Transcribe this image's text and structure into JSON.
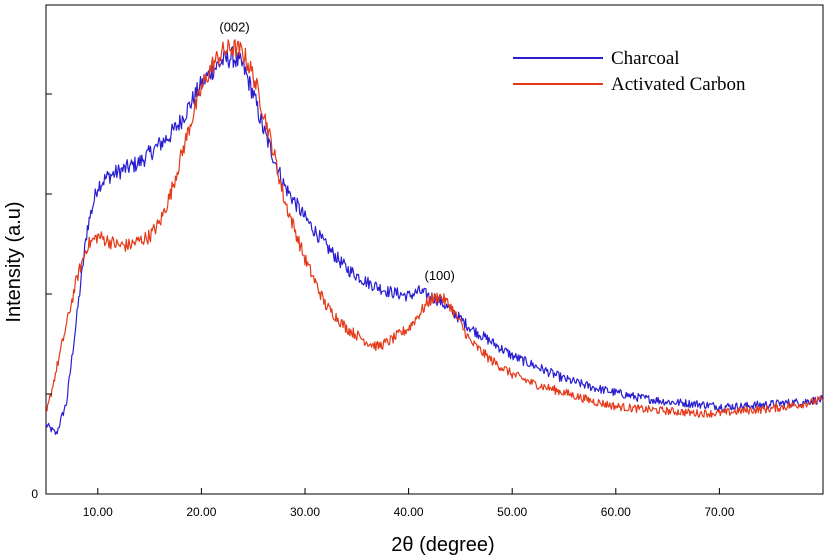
{
  "chart_data": {
    "type": "line",
    "title": "",
    "xlabel": "2θ (degree)",
    "ylabel": "Intensity (a.u)",
    "xlim": [
      5,
      80
    ],
    "ylim": [
      0,
      1
    ],
    "x_ticks": [
      10,
      20,
      30,
      40,
      50,
      60,
      70
    ],
    "x_tick_labels": [
      "10.00",
      "20.00",
      "30.00",
      "40.00",
      "50.00",
      "60.00",
      "70.00"
    ],
    "y_tick_labels": [
      "0"
    ],
    "legend_position": "top-right",
    "annotations": [
      {
        "text": "(002)",
        "x": 23.2,
        "y": 0.975
      },
      {
        "text": "(100)",
        "x": 43.0,
        "y": 0.435
      }
    ],
    "series": [
      {
        "name": "Charcoal",
        "color": "#2a1fd0",
        "x": [
          5,
          6,
          7,
          8,
          9,
          10,
          11,
          12,
          13,
          14,
          15,
          16,
          17,
          18,
          19,
          20,
          21,
          22,
          23,
          24,
          25,
          26,
          27,
          28,
          30,
          32,
          34,
          36,
          38,
          40,
          41,
          42,
          43,
          44,
          45,
          46,
          48,
          50,
          52,
          55,
          58,
          60,
          62,
          65,
          68,
          70,
          72,
          75,
          78,
          80
        ],
        "y": [
          0.12,
          0.1,
          0.17,
          0.36,
          0.55,
          0.64,
          0.66,
          0.67,
          0.68,
          0.69,
          0.71,
          0.73,
          0.75,
          0.78,
          0.82,
          0.86,
          0.89,
          0.91,
          0.92,
          0.9,
          0.84,
          0.76,
          0.7,
          0.64,
          0.57,
          0.51,
          0.46,
          0.43,
          0.41,
          0.4,
          0.41,
          0.4,
          0.39,
          0.37,
          0.35,
          0.33,
          0.3,
          0.27,
          0.25,
          0.22,
          0.2,
          0.19,
          0.18,
          0.17,
          0.165,
          0.16,
          0.16,
          0.165,
          0.17,
          0.175
        ]
      },
      {
        "name": "Activated Carbon",
        "color": "#e53a1a",
        "x": [
          5,
          6,
          7,
          8,
          9,
          10,
          11,
          12,
          13,
          14,
          15,
          16,
          17,
          18,
          19,
          20,
          21,
          22,
          23,
          24,
          25,
          26,
          27,
          28,
          30,
          32,
          34,
          36,
          37,
          38,
          40,
          41,
          42,
          43,
          44,
          45,
          46,
          48,
          50,
          52,
          55,
          58,
          60,
          62,
          65,
          68,
          70,
          72,
          75,
          78,
          80
        ],
        "y": [
          0.14,
          0.24,
          0.34,
          0.44,
          0.51,
          0.53,
          0.52,
          0.51,
          0.51,
          0.52,
          0.53,
          0.56,
          0.62,
          0.7,
          0.78,
          0.85,
          0.9,
          0.93,
          0.94,
          0.93,
          0.88,
          0.8,
          0.71,
          0.61,
          0.48,
          0.38,
          0.33,
          0.3,
          0.29,
          0.3,
          0.33,
          0.36,
          0.39,
          0.4,
          0.38,
          0.34,
          0.3,
          0.26,
          0.23,
          0.21,
          0.19,
          0.17,
          0.16,
          0.155,
          0.15,
          0.145,
          0.145,
          0.15,
          0.155,
          0.165,
          0.175
        ]
      }
    ]
  }
}
